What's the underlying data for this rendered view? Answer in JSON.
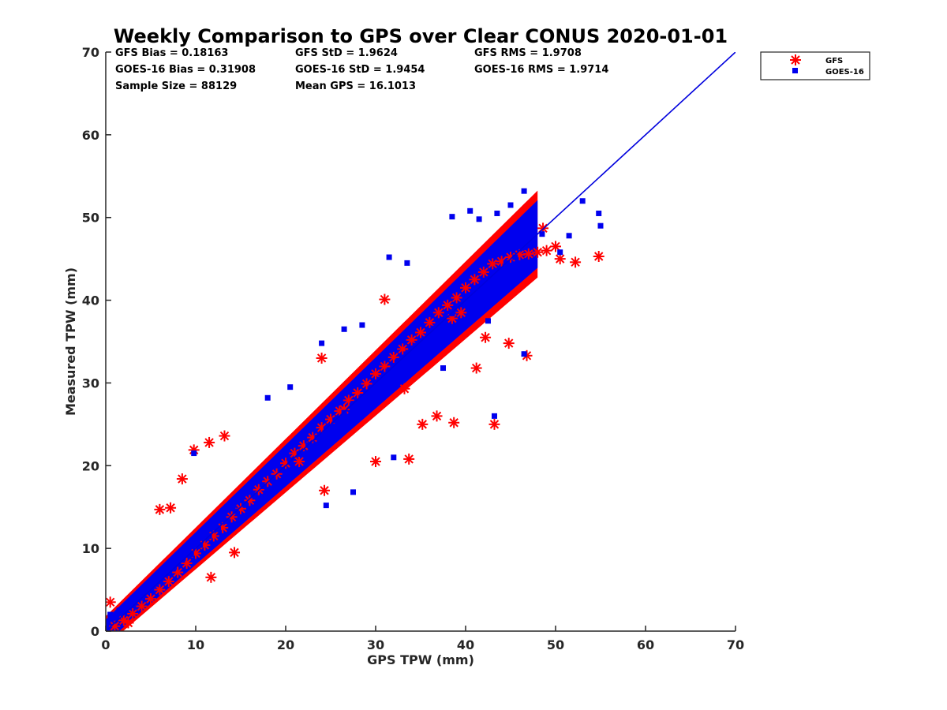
{
  "chart_data": {
    "type": "scatter",
    "title": "Weekly Comparison to GPS over Clear CONUS 2020-01-01",
    "xlabel": "GPS TPW (mm)",
    "ylabel": "Measured TPW (mm)",
    "xlim": [
      0,
      70
    ],
    "ylim": [
      0,
      70
    ],
    "xticks": [
      "0",
      "10",
      "20",
      "30",
      "40",
      "50",
      "60",
      "70"
    ],
    "yticks": [
      "0",
      "10",
      "20",
      "30",
      "40",
      "50",
      "60",
      "70"
    ],
    "grid": false,
    "legend_position": "outside-top-right",
    "reference_line": {
      "name": "1:1 line",
      "x": [
        0,
        70
      ],
      "y": [
        0,
        70
      ],
      "color": "#0000dd"
    },
    "statistics": [
      [
        "GFS Bias = 0.18163",
        "GFS StD = 1.9624",
        "GFS RMS = 1.9708"
      ],
      [
        "GOES-16 Bias = 0.31908",
        "GOES-16 StD = 1.9454",
        "GOES-16 RMS = 1.9714"
      ],
      [
        "Sample Size = 88129",
        "Mean GPS = 16.1013"
      ]
    ],
    "series": [
      {
        "name": "GFS",
        "marker": "asterisk",
        "color": "#ff0000",
        "x": [
          1,
          2,
          3,
          4,
          5,
          6,
          7,
          8,
          9,
          10,
          11,
          12,
          13,
          14,
          15,
          16,
          17,
          18,
          19,
          20,
          21,
          22,
          23,
          24,
          25,
          26,
          27,
          28,
          29,
          30,
          31,
          32,
          33,
          34,
          35,
          36,
          37,
          38,
          39,
          40,
          41,
          42,
          43,
          44,
          45,
          46,
          47,
          48,
          49,
          50,
          8.5,
          9.8,
          11.5,
          13.2,
          6.0,
          7.2,
          24.0,
          26.5,
          38.5,
          39.5,
          43.2,
          44.8,
          46.8,
          48.6,
          50.5,
          52.2,
          54.8,
          21.5,
          24.3,
          30.0,
          33.7,
          35.2,
          36.8,
          38.7,
          41.2,
          42.2,
          31.0,
          33.2,
          14.3,
          11.7,
          2.5,
          0.5
        ],
        "y": [
          0.6,
          1.3,
          2.1,
          3.0,
          3.9,
          5.0,
          6.0,
          7.1,
          8.2,
          9.4,
          10.4,
          11.5,
          12.5,
          13.8,
          14.8,
          15.8,
          17.1,
          18.1,
          19.0,
          20.3,
          21.5,
          22.4,
          23.4,
          24.6,
          25.6,
          26.6,
          27.9,
          28.8,
          29.9,
          31.1,
          32.0,
          33.1,
          34.1,
          35.2,
          36.1,
          37.3,
          38.5,
          39.4,
          40.3,
          41.5,
          42.5,
          43.4,
          44.4,
          44.7,
          45.2,
          45.5,
          45.6,
          45.8,
          46.0,
          46.5,
          18.4,
          21.9,
          22.8,
          23.6,
          14.7,
          14.9,
          33.0,
          26.8,
          37.8,
          38.5,
          25.0,
          34.8,
          33.3,
          48.7,
          45.0,
          44.6,
          45.3,
          20.5,
          17.0,
          20.5,
          20.8,
          25.0,
          26.0,
          25.2,
          31.8,
          35.5,
          40.1,
          29.3,
          9.5,
          6.5,
          1.0,
          3.5
        ]
      },
      {
        "name": "GOES-16",
        "marker": "square",
        "color": "#0000ee",
        "x": [
          0.5,
          1.5,
          2.5,
          3.5,
          4.5,
          5.5,
          6.5,
          7.5,
          8.5,
          9.5,
          10.5,
          11.5,
          12.5,
          13.5,
          14.5,
          15.5,
          16.5,
          17.5,
          18.5,
          19.5,
          20.5,
          21.5,
          22.5,
          23.5,
          24.5,
          25.5,
          26.5,
          27.5,
          28.5,
          29.5,
          30.5,
          31.5,
          32.5,
          33.5,
          34.5,
          35.5,
          36.5,
          37.5,
          38.5,
          39.5,
          40.5,
          41.5,
          42.5,
          43.5,
          44.5,
          45.5,
          46.5,
          47.5,
          48.5,
          3.0,
          9.8,
          18.0,
          20.5,
          24.0,
          26.5,
          28.5,
          31.5,
          33.5,
          38.5,
          40.5,
          41.5,
          43.5,
          45.0,
          46.5,
          50.5,
          51.5,
          53.0,
          54.8,
          55.0,
          42.5,
          37.5,
          24.5,
          32.0,
          43.2,
          46.5,
          27.5
        ],
        "y": [
          2.0,
          2.5,
          3.3,
          4.2,
          5.0,
          5.7,
          6.8,
          7.6,
          8.6,
          9.3,
          10.4,
          11.5,
          12.3,
          13.3,
          14.5,
          15.3,
          16.4,
          17.5,
          18.3,
          19.5,
          20.5,
          21.4,
          22.5,
          23.4,
          24.4,
          25.5,
          26.4,
          27.5,
          28.3,
          29.4,
          30.4,
          31.5,
          32.6,
          33.5,
          34.5,
          35.3,
          36.6,
          37.3,
          38.4,
          39.5,
          40.6,
          41.5,
          42.4,
          43.3,
          44.5,
          45.2,
          46.4,
          47.2,
          48.0,
          4.0,
          21.5,
          28.2,
          29.5,
          34.8,
          36.5,
          37.0,
          45.2,
          44.5,
          50.1,
          50.8,
          49.8,
          50.5,
          51.5,
          53.2,
          45.8,
          47.8,
          52.0,
          50.5,
          49.0,
          37.5,
          31.8,
          15.2,
          21.0,
          26.0,
          33.5,
          16.8
        ]
      }
    ]
  }
}
